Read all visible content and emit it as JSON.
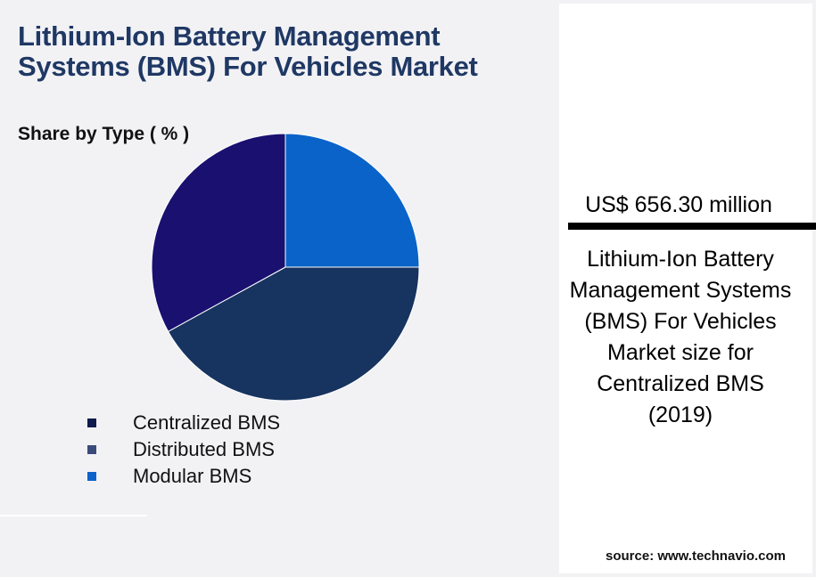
{
  "header": {
    "title": "Lithium-Ion Battery Management Systems (BMS) For Vehicles Market",
    "subtitle": "Share by Type ( % )"
  },
  "chart_data": {
    "type": "pie",
    "title": "Lithium-Ion Battery Management Systems (BMS) For Vehicles Market",
    "subtitle": "Share by Type ( % )",
    "categories": [
      "Centralized BMS",
      "Distributed BMS",
      "Modular BMS"
    ],
    "values": [
      33,
      42,
      25
    ],
    "colors": [
      "#1a1070",
      "#17335f",
      "#0a63c9"
    ],
    "legend_colors": [
      "#0f1a4d",
      "#3a4a7a",
      "#0a63c9"
    ],
    "legend_position": "bottom-left"
  },
  "legend": {
    "items": [
      {
        "label": "Centralized BMS",
        "color": "#0f1a4d"
      },
      {
        "label": "Distributed BMS",
        "color": "#3a4a7a"
      },
      {
        "label": "Modular BMS",
        "color": "#0a63c9"
      }
    ]
  },
  "side_panel": {
    "market_value": "US$ 656.30 million",
    "description": "Lithium-Ion Battery Management Systems (BMS) For Vehicles Market size for Centralized BMS (2019)",
    "source": "source: www.technavio.com"
  }
}
